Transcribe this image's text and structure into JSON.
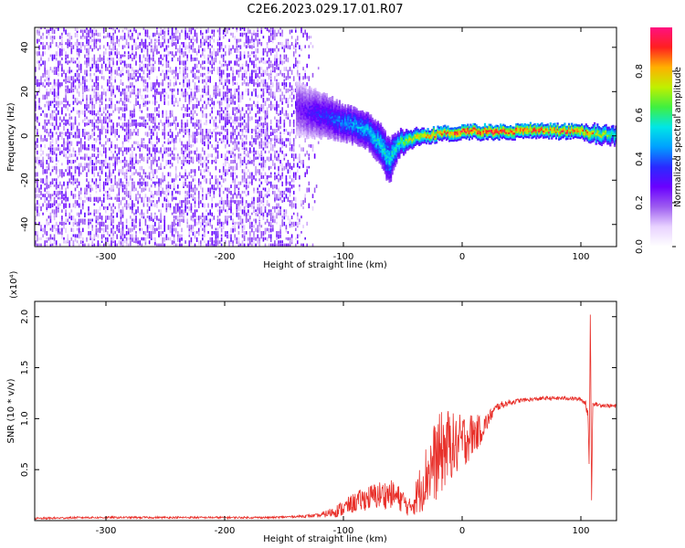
{
  "title": "C2E6.2023.029.17.01.R07",
  "colors": {
    "line": "#e8302a",
    "axis": "#000000",
    "background": "#ffffff"
  },
  "chart_data": [
    {
      "type": "heatmap",
      "xlabel": "Height of straight line (km)",
      "ylabel": "Frequency (Hz)",
      "xlim": [
        -360,
        130
      ],
      "ylim": [
        -50,
        49
      ],
      "xticks": [
        -300,
        -200,
        -100,
        0,
        100
      ],
      "yticks": [
        -40,
        -20,
        0,
        20,
        40
      ],
      "colorbar": {
        "label": "Normalized spectral amplitude",
        "range": [
          0.0,
          1.0
        ],
        "ticks": [
          "0.0",
          "0.2",
          "0.4",
          "0.6",
          "0.8"
        ],
        "tick_values": [
          0.0,
          0.2,
          0.4,
          0.6,
          0.8
        ],
        "colormap": [
          "#ffffff",
          "#e8d2ff",
          "#9d5cf0",
          "#6a00ff",
          "#2a2aff",
          "#00a0ff",
          "#00e6e6",
          "#40f040",
          "#c0f000",
          "#ffb000",
          "#ff2020",
          "#ff1080"
        ]
      },
      "noise_region": [
        -360,
        -130
      ],
      "signal_trace": {
        "x": [
          -140,
          -120,
          -100,
          -80,
          -70,
          -62,
          -55,
          -45,
          -30,
          -10,
          0,
          20,
          50,
          80,
          100,
          115,
          130
        ],
        "y": [
          12,
          9,
          6,
          2,
          -4,
          -12,
          -4,
          -2,
          0,
          1,
          1.5,
          1.5,
          2,
          2,
          1.5,
          0.5,
          0
        ],
        "width": [
          12,
          10,
          8,
          8,
          9,
          10,
          6,
          4,
          3,
          3,
          3,
          3,
          3,
          3,
          3,
          4,
          4
        ],
        "amplitude": [
          0.25,
          0.35,
          0.45,
          0.5,
          0.55,
          0.55,
          0.6,
          0.75,
          0.85,
          0.9,
          0.95,
          0.95,
          0.92,
          0.9,
          0.9,
          0.75,
          0.6
        ]
      }
    },
    {
      "type": "line",
      "xlabel": "Height of straight line (km)",
      "ylabel": "SNR (10 * v/v)",
      "y_multiplier": "(x10⁴)",
      "xlim": [
        -360,
        130
      ],
      "ylim": [
        0.0,
        2.15
      ],
      "xticks": [
        -300,
        -200,
        -100,
        0,
        100
      ],
      "yticks": [
        0.5,
        1.0,
        1.5,
        2.0
      ],
      "ytick_labels": [
        "0.5",
        "1.0",
        "1.5",
        "2.0"
      ],
      "series": [
        {
          "x": [
            -360,
            -320,
            -280,
            -240,
            -200,
            -160,
            -140,
            -120,
            -110,
            -100,
            -90,
            -80,
            -70,
            -60,
            -50,
            -45,
            -40,
            -35,
            -30,
            -25,
            -20,
            -15,
            -10,
            -5,
            0,
            5,
            10,
            15,
            20,
            25,
            30,
            40,
            50,
            60,
            70,
            80,
            90,
            100,
            104,
            106,
            107,
            108,
            109,
            110,
            112,
            120,
            130
          ],
          "y": [
            0.02,
            0.03,
            0.03,
            0.03,
            0.03,
            0.03,
            0.04,
            0.05,
            0.08,
            0.12,
            0.18,
            0.22,
            0.25,
            0.26,
            0.2,
            0.12,
            0.2,
            0.32,
            0.45,
            0.55,
            0.62,
            0.7,
            0.75,
            0.72,
            0.78,
            0.82,
            0.85,
            0.88,
            0.95,
            1.05,
            1.12,
            1.16,
            1.18,
            1.19,
            1.2,
            1.2,
            1.2,
            1.19,
            1.15,
            1.05,
            0.5,
            2.1,
            0.2,
            1.15,
            1.14,
            1.13,
            1.12
          ],
          "noise": [
            0.01,
            0.01,
            0.01,
            0.01,
            0.01,
            0.01,
            0.01,
            0.02,
            0.05,
            0.08,
            0.1,
            0.12,
            0.14,
            0.14,
            0.12,
            0.08,
            0.15,
            0.25,
            0.32,
            0.38,
            0.42,
            0.4,
            0.35,
            0.3,
            0.28,
            0.25,
            0.2,
            0.15,
            0.1,
            0.06,
            0.04,
            0.03,
            0.02,
            0.02,
            0.02,
            0.02,
            0.02,
            0.02,
            0.04,
            0.08,
            0.0,
            0.0,
            0.0,
            0.02,
            0.02,
            0.02,
            0.02
          ]
        }
      ]
    }
  ]
}
